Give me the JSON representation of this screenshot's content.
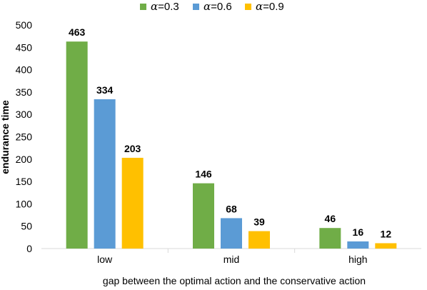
{
  "chart_data": {
    "type": "bar",
    "title": "",
    "xlabel": "gap between the optimal action and  the conservative action",
    "ylabel": "endurance time",
    "categories": [
      "low",
      "mid",
      "high"
    ],
    "series": [
      {
        "name": "α=0.3",
        "symbol": "α",
        "suffix": "=0.3",
        "color": "#70ad47",
        "values": [
          463,
          146,
          46
        ]
      },
      {
        "name": "α=0.6",
        "symbol": "α",
        "suffix": "=0.6",
        "color": "#5b9bd5",
        "values": [
          334,
          68,
          16
        ]
      },
      {
        "name": "α=0.9",
        "symbol": "α",
        "suffix": "=0.9",
        "color": "#ffc000",
        "values": [
          203,
          39,
          12
        ]
      }
    ],
    "ylim": [
      0,
      500
    ],
    "yticks": [
      0,
      50,
      100,
      150,
      200,
      250,
      300,
      350,
      400,
      450,
      500
    ],
    "grid": false,
    "legend": "top-center",
    "data_labels": true
  }
}
